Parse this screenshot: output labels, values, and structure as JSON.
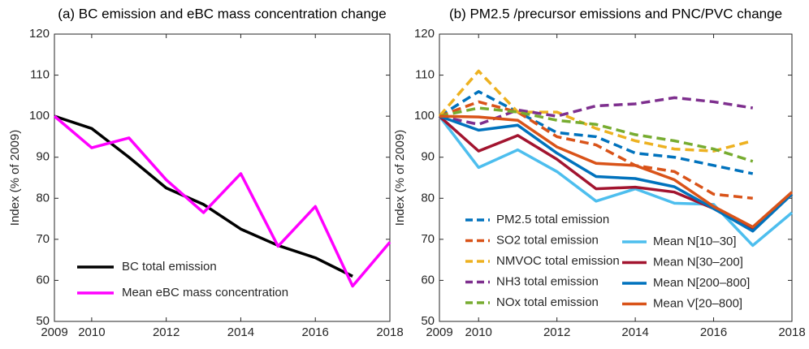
{
  "chart_data": [
    {
      "type": "line",
      "title": "(a) BC emission and eBC mass concentration change",
      "ylabel": "Index (% of 2009)",
      "x": [
        2009,
        2010,
        2011,
        2012,
        2013,
        2014,
        2015,
        2016,
        2017,
        2018
      ],
      "xlim": [
        2009,
        2018
      ],
      "xticks": [
        2009,
        2010,
        2012,
        2014,
        2016,
        2018
      ],
      "ylim": [
        50,
        120
      ],
      "yticks": [
        50,
        60,
        70,
        80,
        90,
        100,
        110,
        120
      ],
      "legend": "lower left",
      "series": [
        {
          "name": "BC total emission",
          "color": "#000000",
          "linestyle": "solid",
          "values": [
            100,
            97,
            90,
            82.5,
            78.5,
            72.5,
            68.5,
            65.5,
            61,
            null
          ]
        },
        {
          "name": "Mean eBC mass concentration",
          "color": "#ff00ff",
          "linestyle": "solid",
          "values": [
            100,
            92.3,
            94.7,
            84.5,
            76.5,
            86,
            68.3,
            78,
            58.6,
            69.3
          ]
        }
      ]
    },
    {
      "type": "line",
      "title": "(b) PM2.5 /precursor emissions and PNC/PVC change",
      "ylabel": "Index (% of 2009)",
      "x": [
        2009,
        2010,
        2011,
        2012,
        2013,
        2014,
        2015,
        2016,
        2017,
        2018
      ],
      "xlim": [
        2009,
        2018
      ],
      "xticks": [
        2009,
        2010,
        2012,
        2014,
        2016,
        2018
      ],
      "ylim": [
        50,
        120
      ],
      "yticks": [
        50,
        60,
        70,
        80,
        90,
        100,
        110,
        120
      ],
      "legend": "lower left",
      "series": [
        {
          "name": "PM2.5 total emission",
          "color": "#0072BD",
          "linestyle": "dashed",
          "values": [
            100,
            106,
            101,
            96,
            95,
            91,
            90,
            88,
            86,
            null
          ]
        },
        {
          "name": "SO2 total emission",
          "color": "#D95319",
          "linestyle": "dashed",
          "values": [
            100,
            103.5,
            101,
            95,
            93,
            88,
            86.5,
            81,
            80,
            null
          ]
        },
        {
          "name": "NMVOC total emission",
          "color": "#EDB120",
          "linestyle": "dashed",
          "values": [
            100,
            111,
            101,
            101,
            97,
            94,
            92,
            91.5,
            94,
            null
          ]
        },
        {
          "name": "NH3 total emission",
          "color": "#7E2F8E",
          "linestyle": "dashed",
          "values": [
            100,
            98,
            101.5,
            100,
            102.5,
            103,
            104.5,
            103.5,
            102,
            null
          ]
        },
        {
          "name": "NOx total emission",
          "color": "#77AC30",
          "linestyle": "dashed",
          "values": [
            100,
            102,
            101,
            99,
            98,
            95.5,
            94,
            92,
            89,
            null
          ]
        },
        {
          "name": "Mean N[10–30]",
          "color": "#4DBEEE",
          "linestyle": "solid",
          "values": [
            100,
            87.5,
            91.8,
            86.5,
            79.3,
            82.3,
            78.8,
            78.5,
            68.5,
            76.5
          ]
        },
        {
          "name": "Mean N[30–200]",
          "color": "#A2142F",
          "linestyle": "solid",
          "values": [
            100,
            91.5,
            95.3,
            89.5,
            82.3,
            82.7,
            81.5,
            77.5,
            72.3,
            81
          ]
        },
        {
          "name": "Mean N[200–800]",
          "color": "#0072BD",
          "linestyle": "solid",
          "values": [
            100,
            96.6,
            97.8,
            91,
            85.3,
            84.8,
            82.8,
            77.5,
            72,
            81
          ]
        },
        {
          "name": "Mean V[20–800]",
          "color": "#D95319",
          "linestyle": "solid",
          "values": [
            100,
            99.8,
            99,
            92.5,
            88.5,
            88,
            84.5,
            78,
            73,
            81.5
          ]
        }
      ]
    }
  ]
}
